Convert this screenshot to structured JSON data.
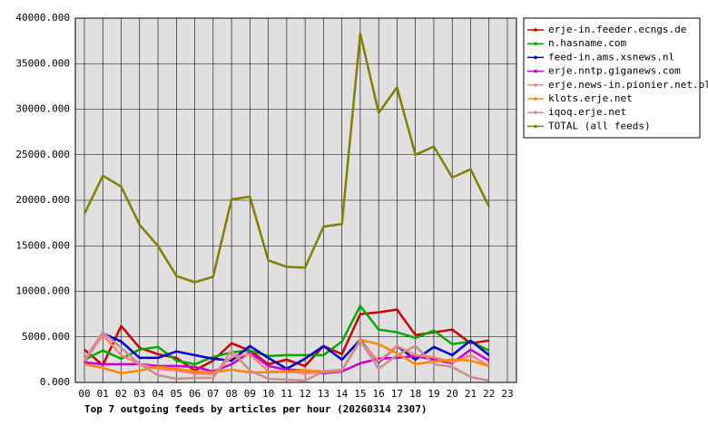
{
  "chart_data": {
    "type": "line",
    "title": "Top 7 outgoing feeds by articles per hour (20260314 2307)",
    "categories": [
      "00",
      "01",
      "02",
      "03",
      "04",
      "05",
      "06",
      "07",
      "08",
      "09",
      "10",
      "11",
      "12",
      "13",
      "14",
      "15",
      "16",
      "17",
      "18",
      "19",
      "20",
      "21",
      "22",
      "23"
    ],
    "series": [
      {
        "name": "erje-in.feeder.ecngs.de",
        "color": "#cc0000",
        "values": [
          3600,
          1900,
          6200,
          3800,
          3100,
          2700,
          1300,
          2400,
          4300,
          3500,
          2000,
          2500,
          1800,
          4000,
          3100,
          7500,
          7700,
          8000,
          5200,
          5500,
          5800,
          4300,
          4600,
          null
        ]
      },
      {
        "name": "n.hasname.com",
        "color": "#00aa00",
        "values": [
          2500,
          3500,
          2600,
          3600,
          3900,
          2400,
          2000,
          2800,
          3300,
          3500,
          2900,
          3000,
          3000,
          3000,
          4500,
          8400,
          5800,
          5500,
          4900,
          5700,
          4200,
          4500,
          3500,
          null
        ]
      },
      {
        "name": "feed-in.ams.xsnews.nl",
        "color": "#0000cc",
        "values": [
          2200,
          5400,
          4500,
          2700,
          2700,
          3400,
          3000,
          2600,
          2400,
          4000,
          2700,
          1500,
          2600,
          4000,
          2500,
          4700,
          2200,
          4000,
          2500,
          3900,
          3000,
          4600,
          3000,
          null
        ]
      },
      {
        "name": "erje.nntp.giganews.com",
        "color": "#cc00cc",
        "values": [
          2200,
          2000,
          2000,
          2000,
          1800,
          1800,
          1700,
          1200,
          2000,
          3300,
          1800,
          1400,
          1300,
          1000,
          1200,
          2100,
          2600,
          2700,
          2900,
          2500,
          2100,
          3600,
          2400,
          null
        ]
      },
      {
        "name": "erje.news-in.pionier.net.pl",
        "color": "#ff8080",
        "values": [
          2300,
          5200,
          3000,
          2000,
          1500,
          1300,
          1000,
          900,
          2800,
          3100,
          1200,
          1200,
          1000,
          1100,
          1300,
          4600,
          2300,
          4000,
          3000,
          2800,
          2200,
          3000,
          1800,
          null
        ]
      },
      {
        "name": "klots.erje.net",
        "color": "#ff8800",
        "values": [
          2000,
          1600,
          1000,
          1300,
          1700,
          1500,
          1200,
          1100,
          1400,
          1100,
          1100,
          1200,
          1300,
          1200,
          1300,
          4700,
          4200,
          3200,
          2000,
          2300,
          2500,
          2400,
          1800,
          null
        ]
      },
      {
        "name": "iqoq.erje.net",
        "color": "#c89090",
        "values": [
          2500,
          5500,
          3800,
          2000,
          800,
          400,
          500,
          500,
          3500,
          1300,
          400,
          300,
          200,
          1200,
          1400,
          4600,
          1500,
          3000,
          4000,
          2000,
          1700,
          600,
          200,
          null
        ]
      },
      {
        "name": "TOTAL (all feeds)",
        "color": "#808000",
        "values": [
          18500,
          22700,
          21500,
          17300,
          15000,
          11700,
          11000,
          11600,
          20100,
          20400,
          13400,
          12700,
          12600,
          17100,
          17400,
          38300,
          29600,
          32400,
          25000,
          25900,
          22500,
          23400,
          19300,
          null
        ]
      }
    ],
    "ylim": [
      0,
      40000
    ],
    "yticks": [
      {
        "value": 0,
        "label": "0.000"
      },
      {
        "value": 5000,
        "label": "5000.000"
      },
      {
        "value": 10000,
        "label": "10000.000"
      },
      {
        "value": 15000,
        "label": "15000.000"
      },
      {
        "value": 20000,
        "label": "20000.000"
      },
      {
        "value": 25000,
        "label": "25000.000"
      },
      {
        "value": 30000,
        "label": "30000.000"
      },
      {
        "value": 35000,
        "label": "35000.000"
      },
      {
        "value": 40000,
        "label": "40000.000"
      }
    ],
    "grid": true,
    "legend": "right"
  }
}
